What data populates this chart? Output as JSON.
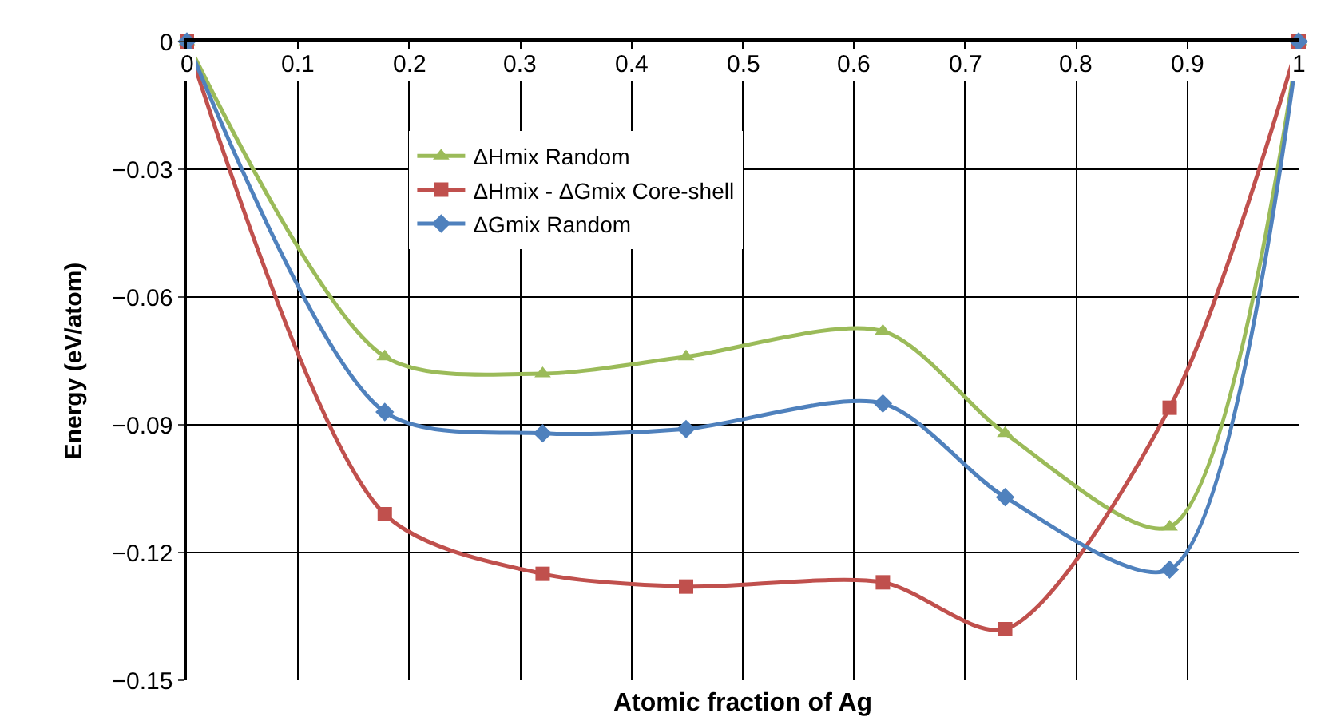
{
  "chart_data": {
    "type": "line",
    "xlabel": "Atomic fraction of Ag",
    "ylabel": "Energy (eV/atom)",
    "xlim": [
      0,
      1
    ],
    "xticks": [
      0,
      0.1,
      0.2,
      0.3,
      0.4,
      0.5,
      0.6,
      0.7,
      0.8,
      0.9,
      1
    ],
    "ylim": [
      -0.15,
      0
    ],
    "yticks": [
      -0.15,
      -0.12,
      -0.09,
      -0.06,
      -0.03,
      0
    ],
    "grid": true,
    "legend": "top left",
    "line_style": "solid",
    "series": [
      {
        "name": "ΔHmix Random",
        "color": "#9bbb59",
        "marker": "triangle",
        "x": [
          0,
          0.178,
          0.32,
          0.449,
          0.626,
          0.736,
          0.884,
          1
        ],
        "values": [
          0,
          -0.074,
          -0.078,
          -0.074,
          -0.068,
          -0.092,
          -0.114,
          0
        ]
      },
      {
        "name": "ΔHmix - ΔGmix Core-shell",
        "color": "#c0504d",
        "marker": "square",
        "x": [
          0,
          0.178,
          0.32,
          0.449,
          0.626,
          0.736,
          0.884,
          1
        ],
        "values": [
          0,
          -0.111,
          -0.125,
          -0.128,
          -0.127,
          -0.138,
          -0.086,
          0
        ]
      },
      {
        "name": "ΔGmix Random",
        "color": "#4f81bd",
        "marker": "diamond",
        "x": [
          0,
          0.178,
          0.32,
          0.449,
          0.626,
          0.736,
          0.884,
          1
        ],
        "values": [
          0,
          -0.087,
          -0.092,
          -0.091,
          -0.085,
          -0.107,
          -0.124,
          0
        ]
      }
    ]
  }
}
